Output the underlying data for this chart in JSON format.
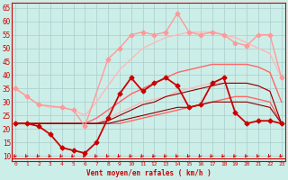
{
  "background_color": "#cceee8",
  "grid_color": "#aacccc",
  "x_labels": [
    "0",
    "1",
    "2",
    "3",
    "4",
    "5",
    "6",
    "7",
    "8",
    "9",
    "10",
    "11",
    "12",
    "13",
    "14",
    "15",
    "16",
    "17",
    "18",
    "19",
    "20",
    "21",
    "22",
    "23"
  ],
  "x_values": [
    0,
    1,
    2,
    3,
    4,
    5,
    6,
    7,
    8,
    9,
    10,
    11,
    12,
    13,
    14,
    15,
    16,
    17,
    18,
    19,
    20,
    21,
    22,
    23
  ],
  "xlabel_text": "Vent moyen/en rafales ( km/h )",
  "yticks": [
    10,
    15,
    20,
    25,
    30,
    35,
    40,
    45,
    50,
    55,
    60,
    65
  ],
  "ylim": [
    8,
    67
  ],
  "xlim": [
    -0.3,
    23.3
  ],
  "series": [
    {
      "name": "max_rafales_markers",
      "color": "#ff9999",
      "linewidth": 1.0,
      "marker": "D",
      "markersize": 2.5,
      "values": [
        35,
        32,
        29,
        null,
        28,
        27,
        21,
        null,
        46,
        50,
        55,
        56,
        55,
        56,
        63,
        56,
        55,
        56,
        55,
        52,
        51,
        55,
        55,
        39
      ]
    },
    {
      "name": "band_upper_light",
      "color": "#ffb8b8",
      "linewidth": 1.0,
      "marker": null,
      "markersize": 0,
      "values": [
        35,
        32,
        29,
        28,
        28,
        27,
        25,
        30,
        36,
        42,
        46,
        50,
        52,
        54,
        55,
        56,
        56,
        56,
        55,
        54,
        52,
        50,
        48,
        39
      ]
    },
    {
      "name": "band_lower_light",
      "color": "#ffb8b8",
      "linewidth": 1.0,
      "marker": null,
      "markersize": 0,
      "values": [
        22,
        22,
        22,
        22,
        22,
        22,
        22,
        22,
        24,
        26,
        28,
        30,
        31,
        32,
        34,
        35,
        36,
        37,
        37,
        37,
        37,
        36,
        34,
        22
      ]
    },
    {
      "name": "band_upper_med",
      "color": "#ff6666",
      "linewidth": 1.0,
      "marker": null,
      "markersize": 0,
      "values": [
        22,
        22,
        22,
        22,
        22,
        22,
        22,
        24,
        27,
        30,
        33,
        35,
        37,
        39,
        41,
        42,
        43,
        44,
        44,
        44,
        44,
        43,
        41,
        30
      ]
    },
    {
      "name": "band_lower_med",
      "color": "#ff6666",
      "linewidth": 1.0,
      "marker": null,
      "markersize": 0,
      "values": [
        22,
        22,
        22,
        22,
        22,
        22,
        22,
        22,
        22,
        22,
        23,
        24,
        25,
        26,
        27,
        28,
        29,
        30,
        31,
        32,
        32,
        31,
        30,
        22
      ]
    },
    {
      "name": "wind_measured",
      "color": "#cc0000",
      "linewidth": 1.3,
      "marker": "D",
      "markersize": 2.5,
      "values": [
        22,
        22,
        21,
        18,
        13,
        12,
        11,
        15,
        24,
        33,
        39,
        34,
        37,
        39,
        36,
        28,
        29,
        37,
        39,
        26,
        22,
        23,
        23,
        22
      ]
    },
    {
      "name": "wind_avg_lower",
      "color": "#880000",
      "linewidth": 0.8,
      "marker": null,
      "markersize": 0,
      "values": [
        22,
        22,
        22,
        22,
        22,
        22,
        22,
        22,
        22,
        23,
        24,
        25,
        26,
        27,
        28,
        28,
        29,
        30,
        30,
        30,
        30,
        29,
        28,
        22
      ]
    },
    {
      "name": "wind_avg_upper",
      "color": "#880000",
      "linewidth": 0.8,
      "marker": null,
      "markersize": 0,
      "values": [
        22,
        22,
        22,
        22,
        22,
        22,
        22,
        22,
        23,
        25,
        27,
        29,
        30,
        32,
        33,
        34,
        35,
        36,
        37,
        37,
        37,
        36,
        34,
        22
      ]
    }
  ],
  "arrow_color": "#cc0000",
  "arrow_size": 5
}
